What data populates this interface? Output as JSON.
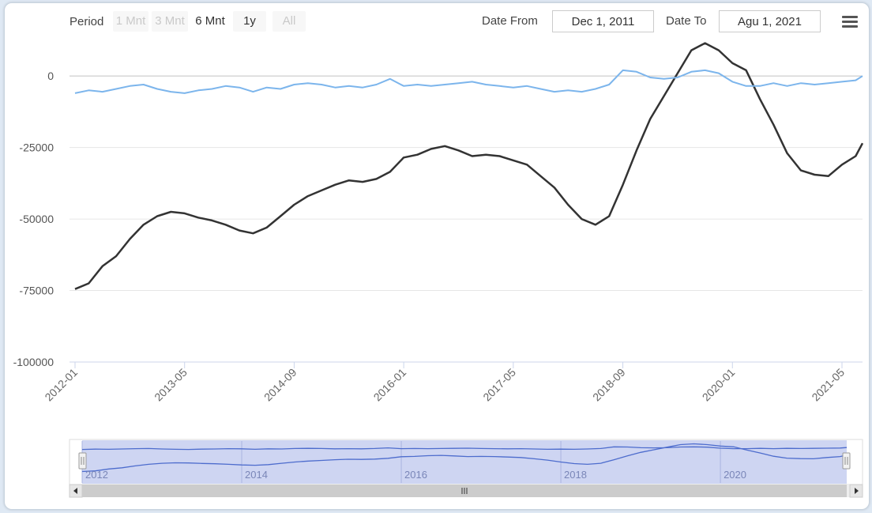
{
  "toolbar": {
    "period_label": "Period",
    "period_buttons": [
      {
        "label": "1 Mnt",
        "state": "disabled"
      },
      {
        "label": "3 Mnt",
        "state": "disabled"
      },
      {
        "label": "6 Mnt",
        "state": "active"
      },
      {
        "label": "1y",
        "state": "normal"
      },
      {
        "label": "All",
        "state": "disabled"
      }
    ],
    "date_from_label": "Date From",
    "date_from_value": "Dec 1, 2011",
    "date_to_label": "Date To",
    "date_to_value": "Agu 1, 2021",
    "menu_icon": "hamburger-menu-icon"
  },
  "navigator": {
    "year_labels": [
      "2012",
      "2014",
      "2016",
      "2018",
      "2020"
    ],
    "scrollbar_grip_icon": "grip-lines-icon",
    "scroll_left_icon": "arrow-left-icon",
    "scroll_right_icon": "arrow-right-icon"
  },
  "chart_data": {
    "type": "line",
    "title": "",
    "xlabel": "",
    "ylabel": "",
    "x_start": "2012-01",
    "x_end": "2021-08",
    "x_tick_labels": [
      "2012-01",
      "2013-05",
      "2014-09",
      "2016-01",
      "2017-05",
      "2018-09",
      "2020-01",
      "2021-05"
    ],
    "y_tick_labels": [
      "0",
      "-25000",
      "-50000",
      "-75000",
      "-100000"
    ],
    "ylim": [
      -100000,
      10000
    ],
    "grid": true,
    "colors": {
      "series_dark": "#333333",
      "series_light": "#7cb5ec",
      "navigator_fill": "#c5cef0",
      "navigator_line": "#4d6ccd"
    },
    "series": [
      {
        "name": "",
        "color": "#333333",
        "points": [
          [
            "2012-01",
            -74500
          ],
          [
            "2012-03",
            -72500
          ],
          [
            "2012-05",
            -66500
          ],
          [
            "2012-07",
            -63000
          ],
          [
            "2012-09",
            -57000
          ],
          [
            "2012-11",
            -52000
          ],
          [
            "2013-01",
            -49000
          ],
          [
            "2013-03",
            -47500
          ],
          [
            "2013-05",
            -48000
          ],
          [
            "2013-07",
            -49500
          ],
          [
            "2013-09",
            -50500
          ],
          [
            "2013-11",
            -52000
          ],
          [
            "2014-01",
            -54000
          ],
          [
            "2014-03",
            -55000
          ],
          [
            "2014-05",
            -53000
          ],
          [
            "2014-07",
            -49000
          ],
          [
            "2014-09",
            -45000
          ],
          [
            "2014-11",
            -42000
          ],
          [
            "2015-01",
            -40000
          ],
          [
            "2015-03",
            -38000
          ],
          [
            "2015-05",
            -36500
          ],
          [
            "2015-07",
            -37000
          ],
          [
            "2015-09",
            -36000
          ],
          [
            "2015-11",
            -33500
          ],
          [
            "2016-01",
            -28500
          ],
          [
            "2016-03",
            -27500
          ],
          [
            "2016-05",
            -25500
          ],
          [
            "2016-07",
            -24500
          ],
          [
            "2016-09",
            -26000
          ],
          [
            "2016-11",
            -28000
          ],
          [
            "2017-01",
            -27500
          ],
          [
            "2017-03",
            -28000
          ],
          [
            "2017-05",
            -29500
          ],
          [
            "2017-07",
            -31000
          ],
          [
            "2017-09",
            -35000
          ],
          [
            "2017-11",
            -39000
          ],
          [
            "2018-01",
            -45000
          ],
          [
            "2018-03",
            -50000
          ],
          [
            "2018-05",
            -52000
          ],
          [
            "2018-07",
            -49000
          ],
          [
            "2018-09",
            -38000
          ],
          [
            "2018-11",
            -26000
          ],
          [
            "2019-01",
            -15000
          ],
          [
            "2019-03",
            -7000
          ],
          [
            "2019-05",
            1000
          ],
          [
            "2019-07",
            9000
          ],
          [
            "2019-09",
            11500
          ],
          [
            "2019-11",
            9000
          ],
          [
            "2020-01",
            4500
          ],
          [
            "2020-03",
            2000
          ],
          [
            "2020-05",
            -8000
          ],
          [
            "2020-07",
            -17000
          ],
          [
            "2020-09",
            -27000
          ],
          [
            "2020-11",
            -33000
          ],
          [
            "2021-01",
            -34500
          ],
          [
            "2021-03",
            -35000
          ],
          [
            "2021-05",
            -31000
          ],
          [
            "2021-07",
            -28000
          ],
          [
            "2021-08",
            -23500
          ]
        ]
      },
      {
        "name": "",
        "color": "#7cb5ec",
        "points": [
          [
            "2012-01",
            -6000
          ],
          [
            "2012-03",
            -5000
          ],
          [
            "2012-05",
            -5500
          ],
          [
            "2012-07",
            -4500
          ],
          [
            "2012-09",
            -3500
          ],
          [
            "2012-11",
            -3000
          ],
          [
            "2013-01",
            -4500
          ],
          [
            "2013-03",
            -5500
          ],
          [
            "2013-05",
            -6000
          ],
          [
            "2013-07",
            -5000
          ],
          [
            "2013-09",
            -4500
          ],
          [
            "2013-11",
            -3500
          ],
          [
            "2014-01",
            -4000
          ],
          [
            "2014-03",
            -5500
          ],
          [
            "2014-05",
            -4000
          ],
          [
            "2014-07",
            -4500
          ],
          [
            "2014-09",
            -3000
          ],
          [
            "2014-11",
            -2500
          ],
          [
            "2015-01",
            -3000
          ],
          [
            "2015-03",
            -4000
          ],
          [
            "2015-05",
            -3500
          ],
          [
            "2015-07",
            -4000
          ],
          [
            "2015-09",
            -3000
          ],
          [
            "2015-11",
            -1000
          ],
          [
            "2016-01",
            -3500
          ],
          [
            "2016-03",
            -3000
          ],
          [
            "2016-05",
            -3500
          ],
          [
            "2016-07",
            -3000
          ],
          [
            "2016-09",
            -2500
          ],
          [
            "2016-11",
            -2000
          ],
          [
            "2017-01",
            -3000
          ],
          [
            "2017-03",
            -3500
          ],
          [
            "2017-05",
            -4000
          ],
          [
            "2017-07",
            -3500
          ],
          [
            "2017-09",
            -4500
          ],
          [
            "2017-11",
            -5500
          ],
          [
            "2018-01",
            -5000
          ],
          [
            "2018-03",
            -5500
          ],
          [
            "2018-05",
            -4500
          ],
          [
            "2018-07",
            -3000
          ],
          [
            "2018-09",
            2000
          ],
          [
            "2018-11",
            1500
          ],
          [
            "2019-01",
            -500
          ],
          [
            "2019-03",
            -1000
          ],
          [
            "2019-05",
            -500
          ],
          [
            "2019-07",
            1500
          ],
          [
            "2019-09",
            2000
          ],
          [
            "2019-11",
            1000
          ],
          [
            "2020-01",
            -2000
          ],
          [
            "2020-03",
            -3500
          ],
          [
            "2020-05",
            -3500
          ],
          [
            "2020-07",
            -2500
          ],
          [
            "2020-09",
            -3500
          ],
          [
            "2020-11",
            -2500
          ],
          [
            "2021-01",
            -3000
          ],
          [
            "2021-03",
            -2500
          ],
          [
            "2021-05",
            -2000
          ],
          [
            "2021-07",
            -1500
          ],
          [
            "2021-08",
            0
          ]
        ]
      }
    ]
  }
}
